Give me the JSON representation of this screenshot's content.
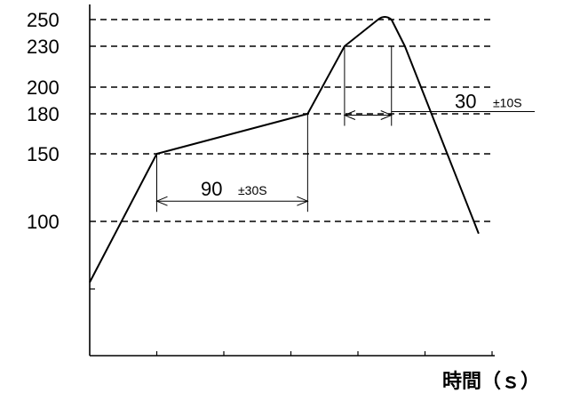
{
  "chart_data": {
    "type": "line",
    "title": "",
    "xlabel": "時間（ｓ）",
    "ylabel": "",
    "ylim": [
      50,
      265
    ],
    "y_ticks": [
      "250",
      "230",
      "200",
      "180",
      "150",
      "100"
    ],
    "grid_lines": [
      250,
      230,
      200,
      180,
      150,
      100
    ],
    "grid": "dashed horizontal",
    "series": [
      {
        "x": [
          0,
          1,
          3.25,
          3.8,
          4.3,
          4.5,
          4.7,
          5.8
        ],
        "y": [
          75,
          150,
          180,
          230,
          250,
          250,
          230,
          95
        ]
      }
    ],
    "annotations": [
      {
        "id": "preheat",
        "text": "90",
        "tolerance": "±30S",
        "x_from": 1,
        "x_to": 3.25,
        "level": 115
      },
      {
        "id": "peak",
        "text": "30",
        "tolerance": "±10S",
        "x_from": 3.8,
        "x_to": 4.5,
        "level": 179
      }
    ],
    "colors": {
      "line": "#000000",
      "grid": "#000000"
    }
  }
}
